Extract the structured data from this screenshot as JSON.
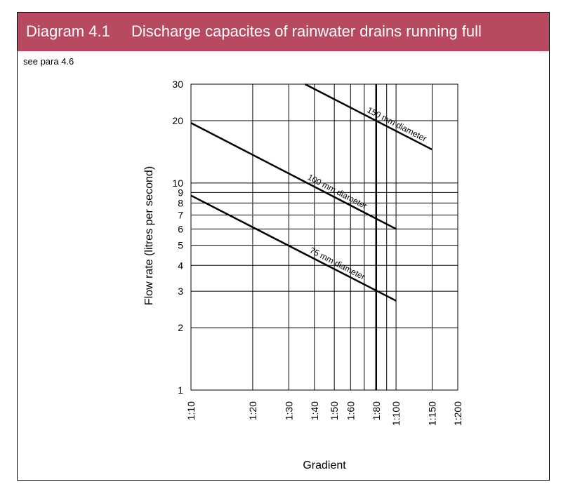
{
  "header": {
    "number": "Diagram 4.1",
    "title": "Discharge capacites of rainwater drains running full"
  },
  "note": "see para 4.6",
  "chart_data": {
    "type": "line",
    "xlabel": "Gradient",
    "ylabel": "Flow rate (litres per second)",
    "x_scale": "log of gradient denominator (1:N)",
    "y_scale": "log",
    "ylim": [
      1,
      30
    ],
    "x_ticks": [
      {
        "label": "1:10",
        "value": 10
      },
      {
        "label": "1:20",
        "value": 20
      },
      {
        "label": "1:30",
        "value": 30
      },
      {
        "label": "1:40",
        "value": 40
      },
      {
        "label": "1:50",
        "value": 50
      },
      {
        "label": "1:60",
        "value": 60
      },
      {
        "label": "1:80",
        "value": 80
      },
      {
        "label": "1:100",
        "value": 100
      },
      {
        "label": "1:150",
        "value": 150
      },
      {
        "label": "1:200",
        "value": 200
      }
    ],
    "x_gridlines": [
      10,
      20,
      30,
      40,
      50,
      60,
      70,
      80,
      90,
      100,
      150,
      200
    ],
    "y_ticks": [
      1,
      2,
      3,
      4,
      5,
      6,
      7,
      8,
      9,
      10,
      20,
      30
    ],
    "series": [
      {
        "name": "150 mm diameter",
        "points": [
          [
            36,
            30
          ],
          [
            150,
            14.5
          ]
        ]
      },
      {
        "name": "100 mm diameter",
        "points": [
          [
            10,
            19.5
          ],
          [
            100,
            6
          ]
        ]
      },
      {
        "name": "75 mm diameter",
        "points": [
          [
            10,
            8.7
          ],
          [
            100,
            2.7
          ]
        ]
      }
    ],
    "reference_line": {
      "gradient": 80,
      "emphasized": true
    }
  }
}
